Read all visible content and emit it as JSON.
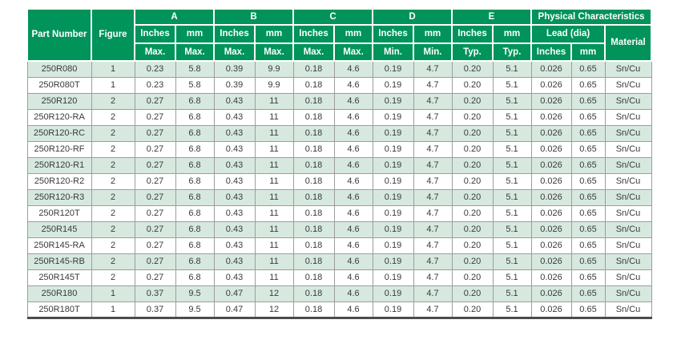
{
  "table": {
    "header": {
      "part_number": "Part Number",
      "figure": "Figure",
      "groups": [
        {
          "label": "A",
          "inches": "Inches",
          "mm": "mm",
          "sub_inches": "Max.",
          "sub_mm": "Max."
        },
        {
          "label": "B",
          "inches": "Inches",
          "mm": "mm",
          "sub_inches": "Max.",
          "sub_mm": "Max."
        },
        {
          "label": "C",
          "inches": "Inches",
          "mm": "mm",
          "sub_inches": "Max.",
          "sub_mm": "Max."
        },
        {
          "label": "D",
          "inches": "Inches",
          "mm": "mm",
          "sub_inches": "Min.",
          "sub_mm": "Min."
        },
        {
          "label": "E",
          "inches": "Inches",
          "mm": "mm",
          "sub_inches": "Typ.",
          "sub_mm": "Typ."
        }
      ],
      "physical": {
        "label": "Physical Characteristics",
        "lead": "Lead (dia)",
        "lead_inches": "Inches",
        "lead_mm": "mm",
        "material": "Material"
      }
    },
    "column_keys": [
      "part-number",
      "figure",
      "a-inches",
      "a-mm",
      "b-inches",
      "b-mm",
      "c-inches",
      "c-mm",
      "d-inches",
      "d-mm",
      "e-inches",
      "e-mm",
      "lead-inches",
      "lead-mm",
      "material"
    ],
    "rows": [
      [
        "250R080",
        "1",
        "0.23",
        "5.8",
        "0.39",
        "9.9",
        "0.18",
        "4.6",
        "0.19",
        "4.7",
        "0.20",
        "5.1",
        "0.026",
        "0.65",
        "Sn/Cu"
      ],
      [
        "250R080T",
        "1",
        "0.23",
        "5.8",
        "0.39",
        "9.9",
        "0.18",
        "4.6",
        "0.19",
        "4.7",
        "0.20",
        "5.1",
        "0.026",
        "0.65",
        "Sn/Cu"
      ],
      [
        "250R120",
        "2",
        "0.27",
        "6.8",
        "0.43",
        "11",
        "0.18",
        "4.6",
        "0.19",
        "4.7",
        "0.20",
        "5.1",
        "0.026",
        "0.65",
        "Sn/Cu"
      ],
      [
        "250R120-RA",
        "2",
        "0.27",
        "6.8",
        "0.43",
        "11",
        "0.18",
        "4.6",
        "0.19",
        "4.7",
        "0.20",
        "5.1",
        "0.026",
        "0.65",
        "Sn/Cu"
      ],
      [
        "250R120-RC",
        "2",
        "0.27",
        "6.8",
        "0.43",
        "11",
        "0.18",
        "4.6",
        "0.19",
        "4.7",
        "0.20",
        "5.1",
        "0.026",
        "0.65",
        "Sn/Cu"
      ],
      [
        "250R120-RF",
        "2",
        "0.27",
        "6.8",
        "0.43",
        "11",
        "0.18",
        "4.6",
        "0.19",
        "4.7",
        "0.20",
        "5.1",
        "0.026",
        "0.65",
        "Sn/Cu"
      ],
      [
        "250R120-R1",
        "2",
        "0.27",
        "6.8",
        "0.43",
        "11",
        "0.18",
        "4.6",
        "0.19",
        "4.7",
        "0.20",
        "5.1",
        "0.026",
        "0.65",
        "Sn/Cu"
      ],
      [
        "250R120-R2",
        "2",
        "0.27",
        "6.8",
        "0.43",
        "11",
        "0.18",
        "4.6",
        "0.19",
        "4.7",
        "0.20",
        "5.1",
        "0.026",
        "0.65",
        "Sn/Cu"
      ],
      [
        "250R120-R3",
        "2",
        "0.27",
        "6.8",
        "0.43",
        "11",
        "0.18",
        "4.6",
        "0.19",
        "4.7",
        "0.20",
        "5.1",
        "0.026",
        "0.65",
        "Sn/Cu"
      ],
      [
        "250R120T",
        "2",
        "0.27",
        "6.8",
        "0.43",
        "11",
        "0.18",
        "4.6",
        "0.19",
        "4.7",
        "0.20",
        "5.1",
        "0.026",
        "0.65",
        "Sn/Cu"
      ],
      [
        "250R145",
        "2",
        "0.27",
        "6.8",
        "0.43",
        "11",
        "0.18",
        "4.6",
        "0.19",
        "4.7",
        "0.20",
        "5.1",
        "0.026",
        "0.65",
        "Sn/Cu"
      ],
      [
        "250R145-RA",
        "2",
        "0.27",
        "6.8",
        "0.43",
        "11",
        "0.18",
        "4.6",
        "0.19",
        "4.7",
        "0.20",
        "5.1",
        "0.026",
        "0.65",
        "Sn/Cu"
      ],
      [
        "250R145-RB",
        "2",
        "0.27",
        "6.8",
        "0.43",
        "11",
        "0.18",
        "4.6",
        "0.19",
        "4.7",
        "0.20",
        "5.1",
        "0.026",
        "0.65",
        "Sn/Cu"
      ],
      [
        "250R145T",
        "2",
        "0.27",
        "6.8",
        "0.43",
        "11",
        "0.18",
        "4.6",
        "0.19",
        "4.7",
        "0.20",
        "5.1",
        "0.026",
        "0.65",
        "Sn/Cu"
      ],
      [
        "250R180",
        "1",
        "0.37",
        "9.5",
        "0.47",
        "12",
        "0.18",
        "4.6",
        "0.19",
        "4.7",
        "0.20",
        "5.1",
        "0.026",
        "0.65",
        "Sn/Cu"
      ],
      [
        "250R180T",
        "1",
        "0.37",
        "9.5",
        "0.47",
        "12",
        "0.18",
        "4.6",
        "0.19",
        "4.7",
        "0.20",
        "5.1",
        "0.026",
        "0.65",
        "Sn/Cu"
      ]
    ]
  },
  "colors": {
    "header_green": "#00935a",
    "row_alt_green": "#d7e9df",
    "grid_line": "#9d9d9d",
    "bottom_frame": "#4c4c4c",
    "body_text": "#3a3a3a",
    "header_text": "#ffffff"
  }
}
